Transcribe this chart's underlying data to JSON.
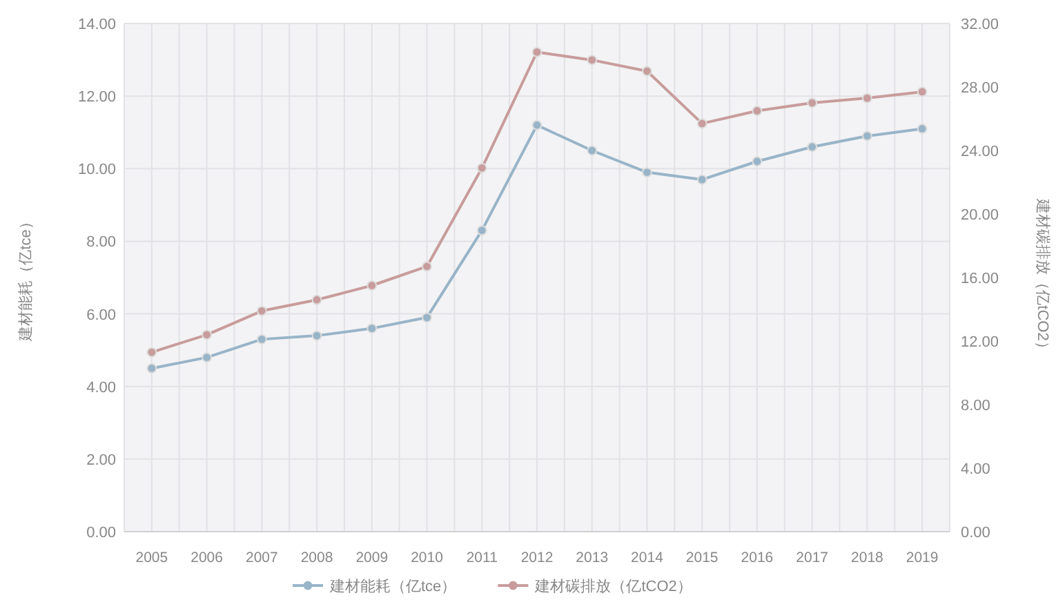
{
  "chart_data": {
    "type": "line",
    "ylabel": "建材能耗（亿tce）",
    "y2label": "建材碳排放（亿tCO2）",
    "categories": [
      "2005",
      "2006",
      "2007",
      "2008",
      "2009",
      "2010",
      "2011",
      "2012",
      "2013",
      "2014",
      "2015",
      "2016",
      "2017",
      "2018",
      "2019"
    ],
    "series": [
      {
        "name": "建材能耗（亿tce）",
        "color": "#98b4c8",
        "values": [
          4.5,
          4.8,
          5.3,
          5.4,
          5.6,
          5.9,
          8.3,
          11.2,
          10.5,
          9.9,
          9.7,
          10.2,
          10.6,
          10.9,
          11.1
        ]
      },
      {
        "name": "建材碳排放（亿tCO2）",
        "color": "#c89c9c",
        "axis": "y2",
        "values": [
          11.3,
          12.4,
          13.9,
          14.6,
          15.5,
          16.7,
          22.9,
          30.2,
          29.7,
          29.0,
          25.7,
          26.5,
          27.0,
          27.3,
          27.7
        ]
      }
    ],
    "ylim": [
      0,
      14
    ],
    "yticks": [
      {
        "value": 0,
        "label": "0.00"
      },
      {
        "value": 2,
        "label": "2.00"
      },
      {
        "value": 4,
        "label": "4.00"
      },
      {
        "value": 6,
        "label": "6.00"
      },
      {
        "value": 8,
        "label": "8.00"
      },
      {
        "value": 10,
        "label": "10.00"
      },
      {
        "value": 12,
        "label": "12.00"
      },
      {
        "value": 14,
        "label": "14.00"
      }
    ],
    "y2lim": [
      0,
      32
    ],
    "y2ticks": [
      {
        "value": 0,
        "label": "0.00"
      },
      {
        "value": 4,
        "label": "4.00"
      },
      {
        "value": 8,
        "label": "8.00"
      },
      {
        "value": 12,
        "label": "12.00"
      },
      {
        "value": 16,
        "label": "16.00"
      },
      {
        "value": 20,
        "label": "20.00"
      },
      {
        "value": 24,
        "label": "24.00"
      },
      {
        "value": 28,
        "label": "28.00"
      },
      {
        "value": 32,
        "label": "32.00"
      }
    ],
    "grid": true,
    "legend": "bottom",
    "marker": "circle"
  }
}
